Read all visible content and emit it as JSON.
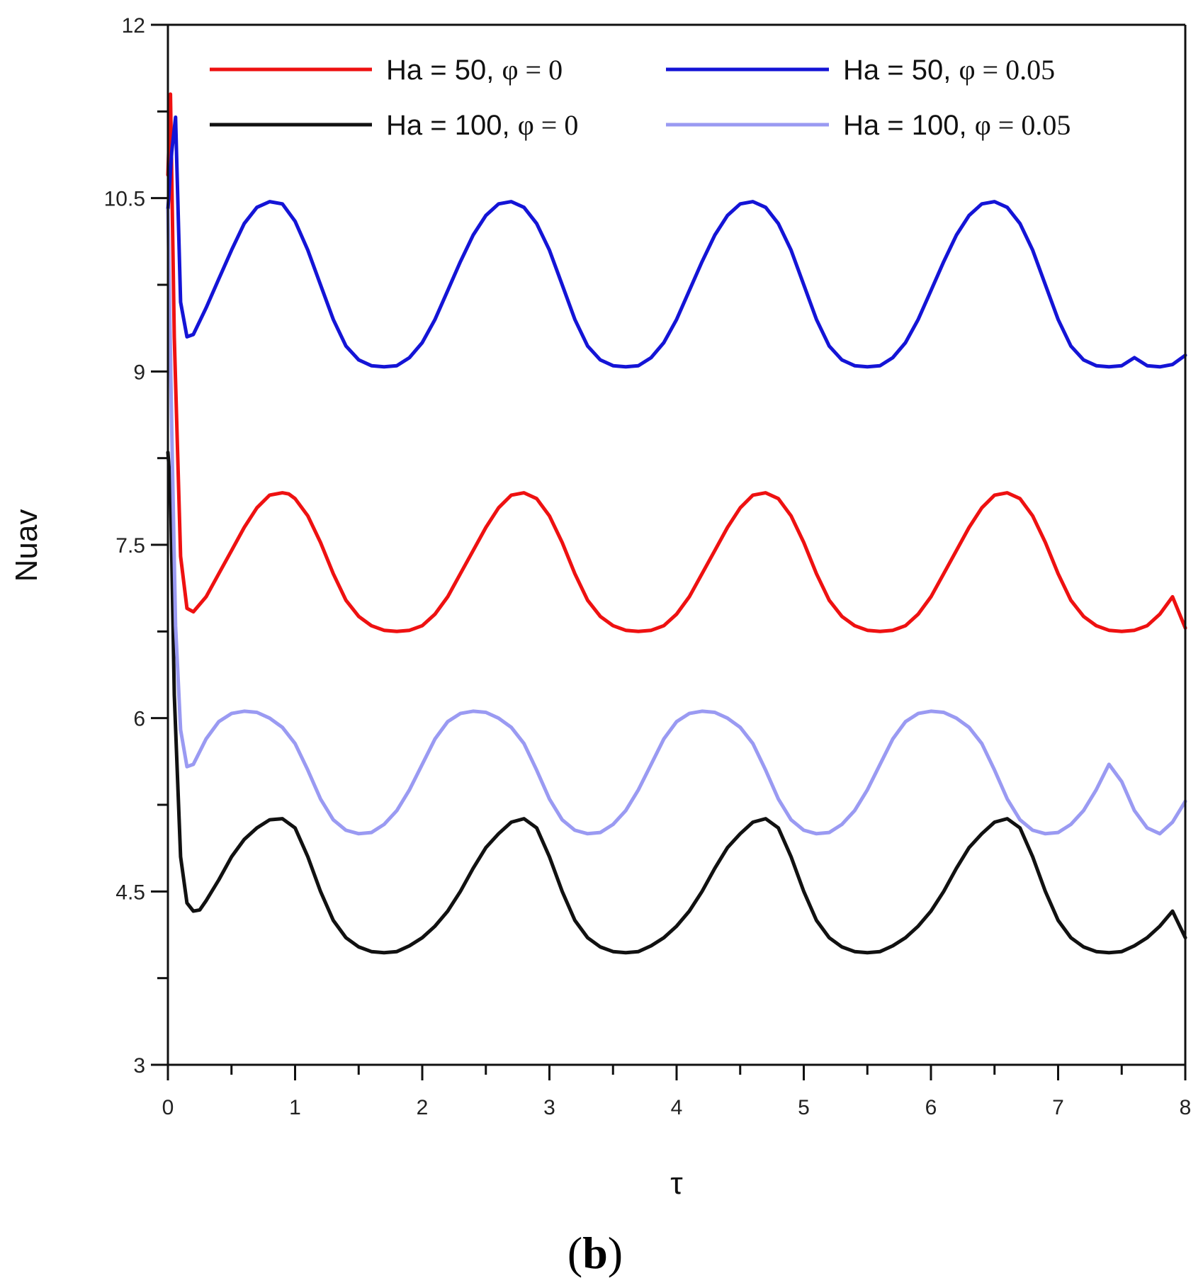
{
  "chart_data": {
    "type": "line",
    "xlabel": "τ",
    "ylabel": "Nuav",
    "caption_open": "(",
    "caption_letter": "b",
    "caption_close": ")",
    "xlim": [
      0,
      8
    ],
    "ylim": [
      3,
      12
    ],
    "x_ticks": [
      0,
      1,
      2,
      3,
      4,
      5,
      6,
      7,
      8
    ],
    "x_tick_labels": [
      "0",
      "1",
      "2",
      "3",
      "4",
      "5",
      "6",
      "7",
      "8"
    ],
    "x_minor_ticks": [
      0.5,
      1.5,
      2.5,
      3.5,
      4.5,
      5.5,
      6.5,
      7.5
    ],
    "y_ticks": [
      3,
      4.5,
      6,
      7.5,
      9,
      10.5,
      12
    ],
    "y_tick_labels": [
      "3",
      "4.5",
      "6",
      "7.5",
      "9",
      "10.5",
      "12"
    ],
    "y_minor_ticks": [
      3.75,
      5.25,
      6.75,
      8.25,
      9.75,
      11.25
    ],
    "grid": false,
    "legend_position": "top",
    "series": [
      {
        "name": "Ha = 50, φ = 0",
        "label_main": "Ha = 50, ",
        "label_sym": "φ = 0",
        "color": "#ee1111",
        "x": [
          0.0,
          0.02,
          0.05,
          0.1,
          0.15,
          0.2,
          0.3,
          0.4,
          0.5,
          0.6,
          0.7,
          0.8,
          0.9,
          0.95,
          1.0,
          1.1,
          1.2,
          1.3,
          1.4,
          1.5,
          1.6,
          1.7,
          1.8,
          1.9,
          2.0,
          2.1,
          2.2,
          2.3,
          2.4,
          2.5,
          2.6,
          2.7,
          2.8,
          2.9,
          3.0,
          3.1,
          3.2,
          3.3,
          3.4,
          3.5,
          3.6,
          3.7,
          3.8,
          3.9,
          4.0,
          4.1,
          4.2,
          4.3,
          4.4,
          4.5,
          4.6,
          4.7,
          4.8,
          4.9,
          5.0,
          5.1,
          5.2,
          5.3,
          5.4,
          5.5,
          5.6,
          5.7,
          5.8,
          5.9,
          6.0,
          6.1,
          6.2,
          6.3,
          6.4,
          6.5,
          6.6,
          6.7,
          6.8,
          6.9,
          7.0,
          7.1,
          7.2,
          7.3,
          7.4,
          7.5,
          7.6,
          7.7,
          7.8,
          7.9,
          8.0
        ],
        "y": [
          10.7,
          11.4,
          9.3,
          7.4,
          6.95,
          6.92,
          7.05,
          7.25,
          7.45,
          7.65,
          7.82,
          7.93,
          7.95,
          7.94,
          7.9,
          7.75,
          7.52,
          7.25,
          7.02,
          6.88,
          6.8,
          6.76,
          6.75,
          6.76,
          6.8,
          6.9,
          7.05,
          7.25,
          7.45,
          7.65,
          7.82,
          7.93,
          7.95,
          7.9,
          7.75,
          7.52,
          7.25,
          7.02,
          6.88,
          6.8,
          6.76,
          6.75,
          6.76,
          6.8,
          6.9,
          7.05,
          7.25,
          7.45,
          7.65,
          7.82,
          7.93,
          7.95,
          7.9,
          7.75,
          7.52,
          7.25,
          7.02,
          6.88,
          6.8,
          6.76,
          6.75,
          6.76,
          6.8,
          6.9,
          7.05,
          7.25,
          7.45,
          7.65,
          7.82,
          7.93,
          7.95,
          7.9,
          7.75,
          7.52,
          7.25,
          7.02,
          6.88,
          6.8,
          6.76,
          6.75,
          6.76,
          6.8,
          6.9,
          7.05,
          6.78
        ]
      },
      {
        "name": "Ha = 50, φ = 0.05",
        "label_main": "Ha = 50, ",
        "label_sym": "φ = 0.05",
        "color": "#1414d6",
        "x": [
          0.0,
          0.03,
          0.06,
          0.1,
          0.15,
          0.2,
          0.3,
          0.4,
          0.5,
          0.6,
          0.7,
          0.8,
          0.9,
          1.0,
          1.1,
          1.2,
          1.3,
          1.4,
          1.5,
          1.6,
          1.7,
          1.8,
          1.9,
          2.0,
          2.1,
          2.2,
          2.3,
          2.4,
          2.5,
          2.6,
          2.7,
          2.8,
          2.9,
          3.0,
          3.1,
          3.2,
          3.3,
          3.4,
          3.5,
          3.6,
          3.7,
          3.8,
          3.9,
          4.0,
          4.1,
          4.2,
          4.3,
          4.4,
          4.5,
          4.6,
          4.7,
          4.8,
          4.9,
          5.0,
          5.1,
          5.2,
          5.3,
          5.4,
          5.5,
          5.6,
          5.7,
          5.8,
          5.9,
          6.0,
          6.1,
          6.2,
          6.3,
          6.4,
          6.5,
          6.6,
          6.7,
          6.8,
          6.9,
          7.0,
          7.1,
          7.2,
          7.3,
          7.4,
          7.5,
          7.6,
          7.7,
          7.8,
          7.9,
          8.0
        ],
        "y": [
          10.4,
          10.9,
          11.2,
          9.6,
          9.3,
          9.32,
          9.55,
          9.8,
          10.05,
          10.28,
          10.42,
          10.47,
          10.45,
          10.3,
          10.05,
          9.75,
          9.45,
          9.22,
          9.1,
          9.05,
          9.04,
          9.05,
          9.12,
          9.25,
          9.45,
          9.7,
          9.95,
          10.18,
          10.35,
          10.45,
          10.47,
          10.42,
          10.28,
          10.05,
          9.75,
          9.45,
          9.22,
          9.1,
          9.05,
          9.04,
          9.05,
          9.12,
          9.25,
          9.45,
          9.7,
          9.95,
          10.18,
          10.35,
          10.45,
          10.47,
          10.42,
          10.28,
          10.05,
          9.75,
          9.45,
          9.22,
          9.1,
          9.05,
          9.04,
          9.05,
          9.12,
          9.25,
          9.45,
          9.7,
          9.95,
          10.18,
          10.35,
          10.45,
          10.47,
          10.42,
          10.28,
          10.05,
          9.75,
          9.45,
          9.22,
          9.1,
          9.05,
          9.04,
          9.05,
          9.12,
          9.05,
          9.04,
          9.06,
          9.14
        ]
      },
      {
        "name": "Ha = 100, φ = 0",
        "label_main": "Ha = 100, ",
        "label_sym": "φ = 0",
        "color": "#111111",
        "x": [
          0.0,
          0.02,
          0.05,
          0.1,
          0.15,
          0.2,
          0.25,
          0.3,
          0.4,
          0.5,
          0.6,
          0.7,
          0.8,
          0.9,
          1.0,
          1.1,
          1.2,
          1.3,
          1.4,
          1.5,
          1.6,
          1.7,
          1.8,
          1.9,
          2.0,
          2.1,
          2.2,
          2.3,
          2.4,
          2.5,
          2.6,
          2.7,
          2.8,
          2.9,
          3.0,
          3.1,
          3.2,
          3.3,
          3.4,
          3.5,
          3.6,
          3.7,
          3.8,
          3.9,
          4.0,
          4.1,
          4.2,
          4.3,
          4.4,
          4.5,
          4.6,
          4.7,
          4.8,
          4.9,
          5.0,
          5.1,
          5.2,
          5.3,
          5.4,
          5.5,
          5.6,
          5.7,
          5.8,
          5.9,
          6.0,
          6.1,
          6.2,
          6.3,
          6.4,
          6.5,
          6.6,
          6.7,
          6.8,
          6.9,
          7.0,
          7.1,
          7.2,
          7.3,
          7.4,
          7.5,
          7.6,
          7.7,
          7.8,
          7.9,
          8.0
        ],
        "y": [
          8.3,
          8.0,
          6.2,
          4.8,
          4.4,
          4.33,
          4.34,
          4.42,
          4.6,
          4.8,
          4.95,
          5.05,
          5.12,
          5.13,
          5.05,
          4.8,
          4.5,
          4.25,
          4.1,
          4.02,
          3.98,
          3.97,
          3.98,
          4.03,
          4.1,
          4.2,
          4.33,
          4.5,
          4.7,
          4.88,
          5.0,
          5.1,
          5.13,
          5.05,
          4.8,
          4.5,
          4.25,
          4.1,
          4.02,
          3.98,
          3.97,
          3.98,
          4.03,
          4.1,
          4.2,
          4.33,
          4.5,
          4.7,
          4.88,
          5.0,
          5.1,
          5.13,
          5.05,
          4.8,
          4.5,
          4.25,
          4.1,
          4.02,
          3.98,
          3.97,
          3.98,
          4.03,
          4.1,
          4.2,
          4.33,
          4.5,
          4.7,
          4.88,
          5.0,
          5.1,
          5.13,
          5.05,
          4.8,
          4.5,
          4.25,
          4.1,
          4.02,
          3.98,
          3.97,
          3.98,
          4.03,
          4.1,
          4.2,
          4.33,
          4.1
        ]
      },
      {
        "name": "Ha = 100, φ = 0.05",
        "label_main": "Ha = 100, ",
        "label_sym": "φ = 0.05",
        "color": "#9a9af2",
        "x": [
          0.0,
          0.03,
          0.06,
          0.1,
          0.15,
          0.2,
          0.3,
          0.4,
          0.5,
          0.6,
          0.7,
          0.8,
          0.9,
          1.0,
          1.1,
          1.2,
          1.3,
          1.4,
          1.5,
          1.6,
          1.7,
          1.8,
          1.9,
          2.0,
          2.1,
          2.2,
          2.3,
          2.4,
          2.5,
          2.6,
          2.7,
          2.8,
          2.9,
          3.0,
          3.1,
          3.2,
          3.3,
          3.4,
          3.5,
          3.6,
          3.7,
          3.8,
          3.9,
          4.0,
          4.1,
          4.2,
          4.3,
          4.4,
          4.5,
          4.6,
          4.7,
          4.8,
          4.9,
          5.0,
          5.1,
          5.2,
          5.3,
          5.4,
          5.5,
          5.6,
          5.7,
          5.8,
          5.9,
          6.0,
          6.1,
          6.2,
          6.3,
          6.4,
          6.5,
          6.6,
          6.7,
          6.8,
          6.9,
          7.0,
          7.1,
          7.2,
          7.3,
          7.4,
          7.5,
          7.6,
          7.7,
          7.8,
          7.9,
          8.0
        ],
        "y": [
          10.4,
          8.5,
          6.8,
          5.9,
          5.58,
          5.6,
          5.82,
          5.97,
          6.04,
          6.06,
          6.05,
          6.0,
          5.92,
          5.78,
          5.55,
          5.3,
          5.12,
          5.03,
          5.0,
          5.01,
          5.08,
          5.2,
          5.38,
          5.6,
          5.82,
          5.97,
          6.04,
          6.06,
          6.05,
          6.0,
          5.92,
          5.78,
          5.55,
          5.3,
          5.12,
          5.03,
          5.0,
          5.01,
          5.08,
          5.2,
          5.38,
          5.6,
          5.82,
          5.97,
          6.04,
          6.06,
          6.05,
          6.0,
          5.92,
          5.78,
          5.55,
          5.3,
          5.12,
          5.03,
          5.0,
          5.01,
          5.08,
          5.2,
          5.38,
          5.6,
          5.82,
          5.97,
          6.04,
          6.06,
          6.05,
          6.0,
          5.92,
          5.78,
          5.55,
          5.3,
          5.12,
          5.03,
          5.0,
          5.01,
          5.08,
          5.2,
          5.38,
          5.6,
          5.45,
          5.2,
          5.05,
          5.0,
          5.1,
          5.28
        ]
      }
    ]
  }
}
